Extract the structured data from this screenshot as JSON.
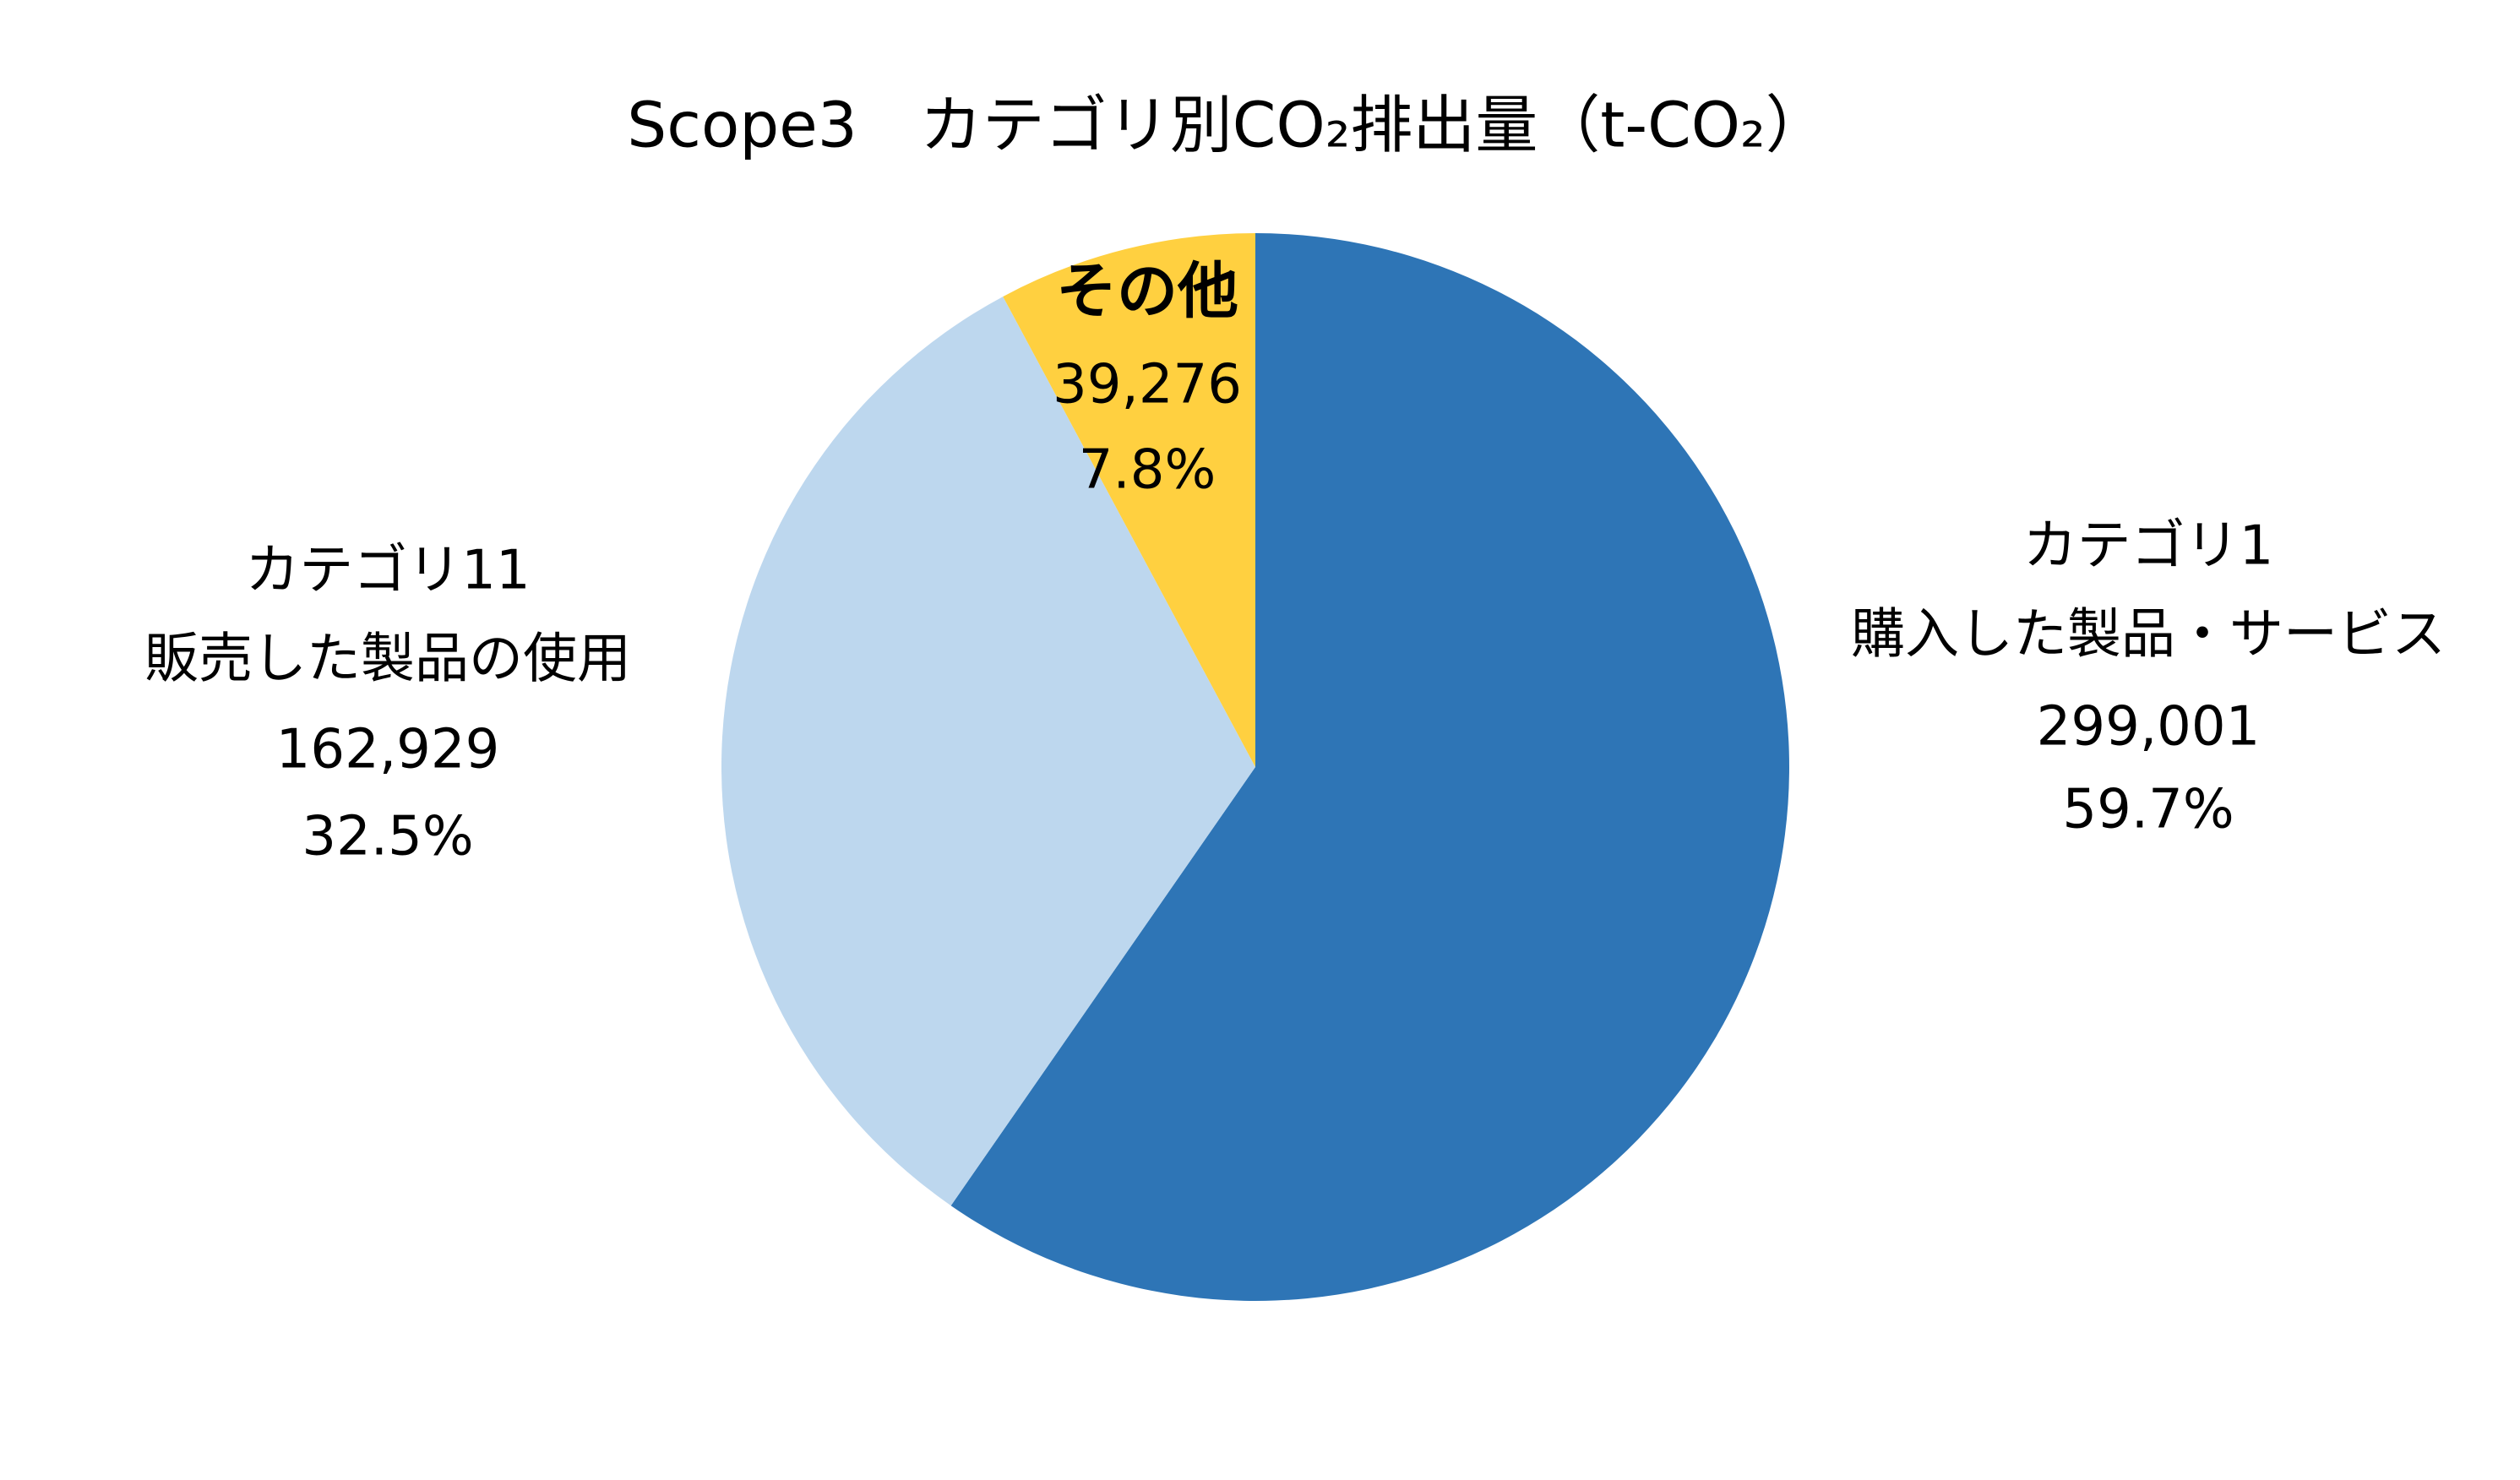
{
  "chart_data": {
    "type": "pie",
    "title": "Scope3　カテゴリ別CO₂排出量（t-CO₂）",
    "categories": [
      [
        "カテゴリ1",
        "購入した製品・サービス"
      ],
      [
        "カテゴリ11",
        "販売した製品の使用"
      ],
      [
        "その他"
      ]
    ],
    "values": [
      299001,
      162929,
      39276
    ],
    "value_labels": [
      "299,001",
      "162,929",
      "39,276"
    ],
    "percentages": [
      59.7,
      32.5,
      7.8
    ],
    "percentage_labels": [
      "59.7%",
      "32.5%",
      "7.8%"
    ],
    "colors": [
      "#2e75b6",
      "#bdd7ee",
      "#ffd040"
    ]
  }
}
